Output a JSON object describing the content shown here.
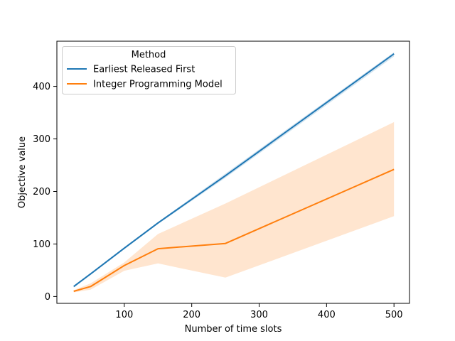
{
  "chart_data": {
    "type": "line",
    "xlabel": "Number of time slots",
    "ylabel": "Objective value",
    "xlim": [
      0,
      523
    ],
    "ylim": [
      -13,
      486
    ],
    "xticks": [
      100,
      200,
      300,
      400,
      500
    ],
    "yticks": [
      0,
      100,
      200,
      300,
      400
    ],
    "grid": false,
    "legend": {
      "title": "Method",
      "placement": "top-left"
    },
    "series": [
      {
        "name": "Earliest Released First",
        "color": "#1f77b4",
        "x": [
          25,
          50,
          100,
          150,
          250,
          500
        ],
        "y": [
          19,
          43,
          92,
          140,
          230,
          462
        ],
        "ci_low": [
          17,
          41,
          90,
          138,
          226,
          457
        ],
        "ci_high": [
          21,
          45,
          94,
          142,
          234,
          465
        ]
      },
      {
        "name": "Integer Programming Model",
        "color": "#ff7f0e",
        "x": [
          25,
          50,
          100,
          150,
          250,
          500
        ],
        "y": [
          10,
          19,
          59,
          91,
          101,
          242
        ],
        "ci_low": [
          8,
          13,
          49,
          63,
          36,
          153
        ],
        "ci_high": [
          12,
          25,
          65,
          119,
          177,
          332
        ]
      }
    ]
  }
}
